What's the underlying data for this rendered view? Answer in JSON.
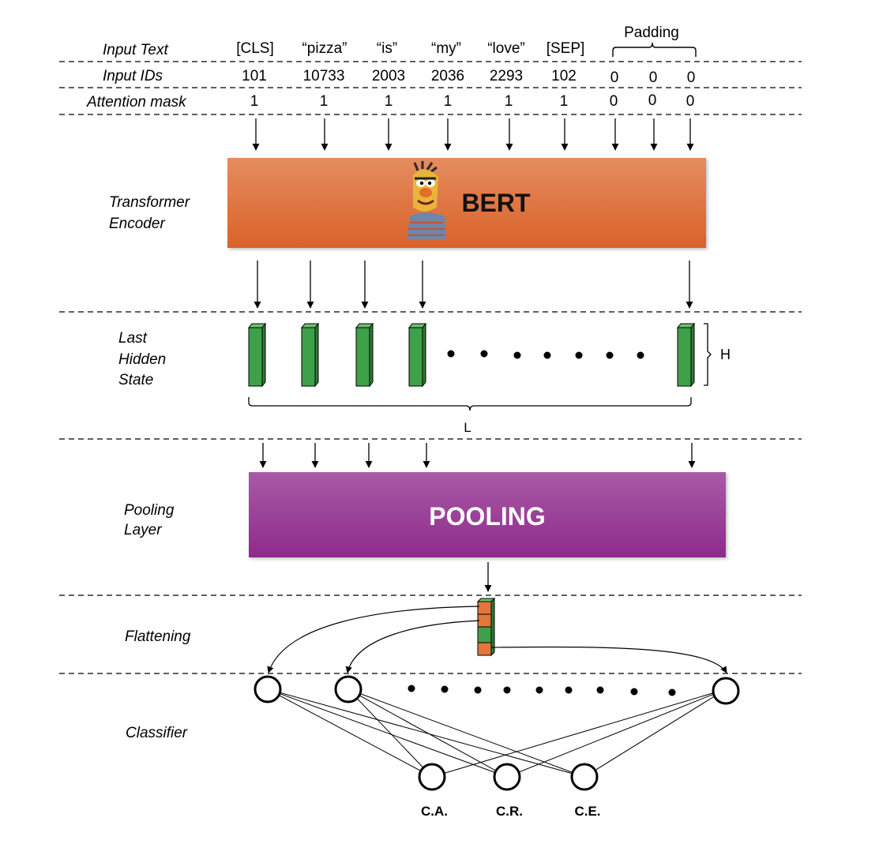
{
  "rows": {
    "input_text_label": "Input Text",
    "input_ids_label": "Input IDs",
    "attention_mask_label": "Attention mask"
  },
  "tokens": [
    "[CLS]",
    "“pizza”",
    "“is”",
    "“my”",
    "“love”",
    "[SEP]"
  ],
  "padding_label": "Padding",
  "input_ids": [
    "101",
    "10733",
    "2003",
    "2036",
    "2293",
    "102",
    "0",
    "0",
    "0"
  ],
  "attention_mask": [
    "1",
    "1",
    "1",
    "1",
    "1",
    "1",
    "0",
    "0",
    "0"
  ],
  "encoder": {
    "label_line1": "Transformer",
    "label_line2": "Encoder",
    "box_text": "BERT",
    "box_color": "#e4763a",
    "mascot": "bert-muppet-icon"
  },
  "hidden_state": {
    "label_line1": "Last",
    "label_line2": "Hidden",
    "label_line3": "State",
    "dim_h": "H",
    "dim_l": "L",
    "bar_color": "#3fa04a"
  },
  "pooling": {
    "label_line1": "Pooling",
    "label_line2": "Layer",
    "box_text": "POOLING",
    "box_color": "#a0399e"
  },
  "flattening": {
    "label": "Flattening",
    "orange": "#e4763a",
    "green": "#3fa04a"
  },
  "classifier": {
    "label": "Classifier",
    "outputs": [
      "C.A.",
      "C.R.",
      "C.E."
    ]
  }
}
